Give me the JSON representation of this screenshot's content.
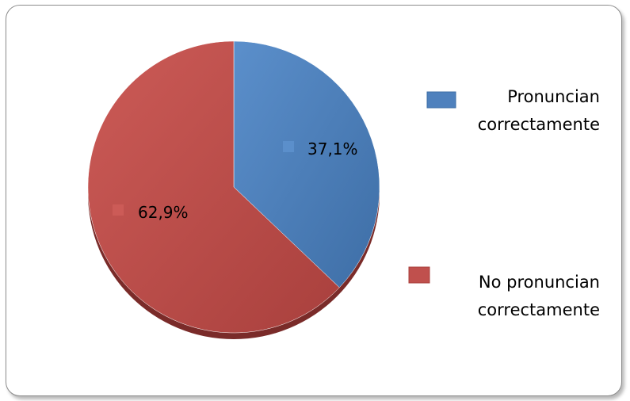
{
  "chart_data": {
    "type": "pie",
    "title": "",
    "categories": [
      "Pronuncian correctamente",
      "No pronuncian correctamente"
    ],
    "values": [
      37.1,
      62.9
    ],
    "data_labels": [
      "37,1%",
      "62,9%"
    ],
    "legend": {
      "placement": "right",
      "entries": [
        {
          "lines": [
            "Pronuncian",
            "correctamente"
          ]
        },
        {
          "lines": [
            "No pronuncian",
            "correctamente"
          ]
        }
      ]
    },
    "colors": [
      "#4f81bd",
      "#c0504d"
    ],
    "colors_light": [
      "#5b8fcb",
      "#cc5b57"
    ],
    "colors_dark": [
      "#3e6ea6",
      "#a9403d"
    ]
  }
}
